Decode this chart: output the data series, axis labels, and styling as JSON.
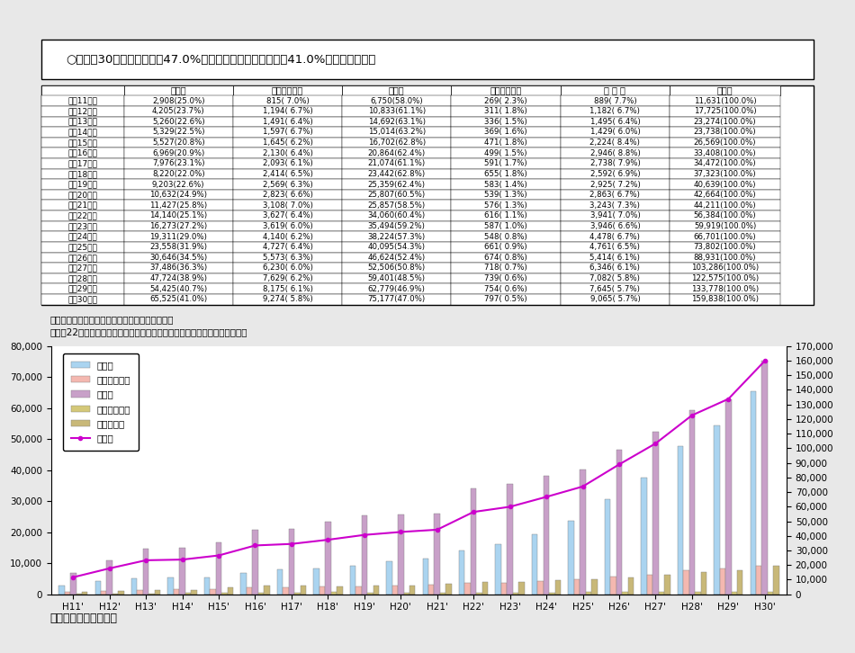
{
  "title_box": "○　平成30年度は、実母が47.0%と最も多く、次いで実父が41.0%となっている。",
  "table_headers": [
    "",
    "実　父",
    "実父以外の父",
    "実　母",
    "実母以外の母",
    "そ の 他",
    "総　数"
  ],
  "years": [
    "平成11年度",
    "平成12年度",
    "平成13年度",
    "平成14年度",
    "平成15年度",
    "平成16年度",
    "平成17年度",
    "平成18年度",
    "平成19年度",
    "平成20年度",
    "平成21年度",
    "平成22年度",
    "平成23年度",
    "平成24年度",
    "平成25年度",
    "平成26年度",
    "平成27年度",
    "平成28年度",
    "平成29年度",
    "平成30年度"
  ],
  "x_labels": [
    "H11'",
    "H12'",
    "H13'",
    "H14'",
    "H15'",
    "H16'",
    "H17'",
    "H18'",
    "H19'",
    "H20'",
    "H21'",
    "H22'",
    "H23'",
    "H24'",
    "H25'",
    "H26'",
    "H27'",
    "H28'",
    "H29'",
    "H30'"
  ],
  "jikufu": [
    2908,
    4205,
    5260,
    5329,
    5527,
    6969,
    7976,
    8220,
    9203,
    10632,
    11427,
    14140,
    16273,
    19311,
    23558,
    30646,
    37486,
    47724,
    54425,
    65525
  ],
  "jikufu_pct": [
    25.0,
    23.7,
    22.6,
    22.5,
    20.8,
    20.9,
    23.1,
    22.0,
    22.6,
    24.9,
    25.8,
    25.1,
    27.2,
    29.0,
    31.9,
    34.5,
    36.3,
    38.9,
    40.7,
    41.0
  ],
  "hijikufu": [
    815,
    1194,
    1491,
    1597,
    1645,
    2130,
    2093,
    2414,
    2569,
    2823,
    3108,
    3627,
    3619,
    4140,
    4727,
    5573,
    6230,
    7629,
    8175,
    9274
  ],
  "hijikufu_pct": [
    7.0,
    6.7,
    6.4,
    6.7,
    6.2,
    6.4,
    6.1,
    6.5,
    6.3,
    6.6,
    7.0,
    6.4,
    6.0,
    6.2,
    6.4,
    6.3,
    6.0,
    6.2,
    6.1,
    5.8
  ],
  "jikubo": [
    6750,
    10833,
    14692,
    15014,
    16702,
    20864,
    21074,
    23442,
    25359,
    25807,
    25857,
    34060,
    35494,
    38224,
    40095,
    46624,
    52506,
    59401,
    62779,
    75177
  ],
  "jikubo_pct": [
    58.0,
    61.1,
    63.1,
    63.2,
    62.8,
    62.4,
    61.1,
    62.8,
    62.4,
    60.5,
    58.5,
    60.4,
    59.2,
    57.3,
    54.3,
    52.4,
    50.8,
    48.5,
    46.9,
    47.0
  ],
  "hijikubo": [
    269,
    311,
    336,
    369,
    471,
    499,
    591,
    655,
    583,
    539,
    576,
    616,
    587,
    548,
    661,
    674,
    718,
    739,
    754,
    797
  ],
  "hijikubo_pct": [
    2.3,
    1.8,
    1.5,
    1.6,
    1.8,
    1.5,
    1.7,
    1.8,
    1.4,
    1.3,
    1.3,
    1.1,
    1.0,
    0.8,
    0.9,
    0.8,
    0.7,
    0.6,
    0.6,
    0.5
  ],
  "sonota": [
    889,
    1182,
    1495,
    1429,
    2224,
    2946,
    2738,
    2592,
    2925,
    2863,
    3243,
    3941,
    3946,
    4478,
    4761,
    5414,
    6346,
    7082,
    7645,
    9065
  ],
  "sonota_pct": [
    7.7,
    6.7,
    6.4,
    6.0,
    8.4,
    8.8,
    7.9,
    6.9,
    7.2,
    6.7,
    7.3,
    7.0,
    6.6,
    6.7,
    6.5,
    6.1,
    6.1,
    5.8,
    5.7,
    5.7
  ],
  "total": [
    11631,
    17725,
    23274,
    23738,
    26569,
    33408,
    34472,
    37323,
    40639,
    42664,
    44211,
    56384,
    59919,
    66701,
    73802,
    88931,
    103286,
    122575,
    133778,
    159838
  ],
  "note1": "＊その他には、祖父母、伯父伯母等が含まれる。",
  "note2": "＊平成22年度は、東日本大震災の影響により、福島県を除いて集計した数値",
  "source": "資料：厚生労働省資料",
  "bar_color_jikufu": "#aad4f0",
  "bar_color_hijikufu": "#f4b8b0",
  "bar_color_jikubo": "#c8a0c8",
  "bar_color_hijikubo": "#d4c878",
  "bar_color_sonota": "#c8b878",
  "line_color_total": "#cc00cc",
  "bg_color": "#f0f0f0"
}
